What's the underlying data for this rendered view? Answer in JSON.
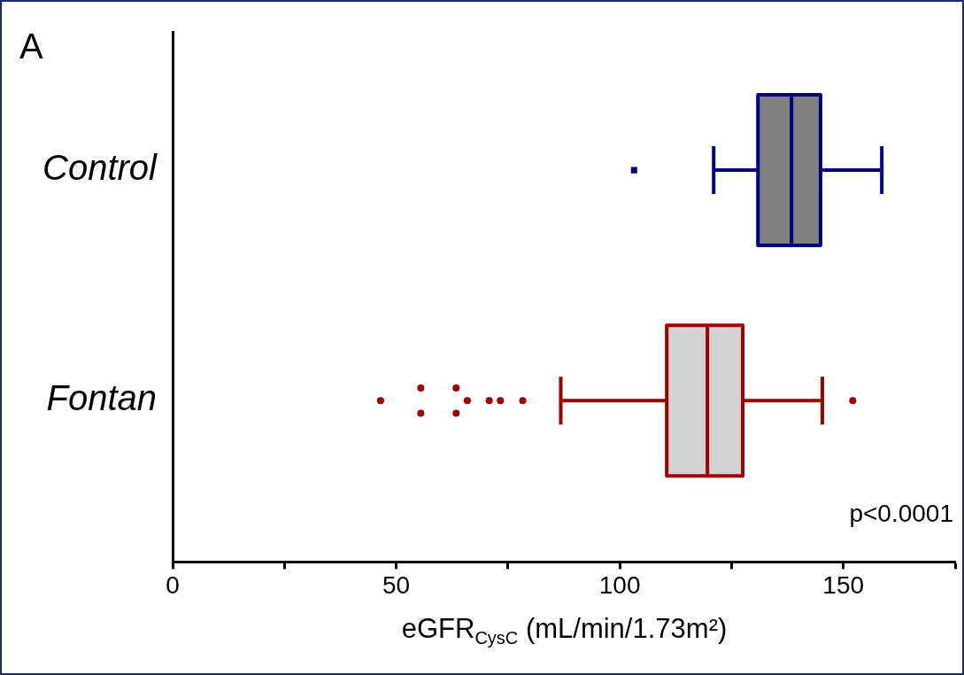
{
  "chart_data": {
    "type": "box",
    "orientation": "horizontal",
    "categories": [
      "Control",
      "Fontan"
    ],
    "xlabel": "eGFR$_{CysC}$ (mL/min/1.73m²)",
    "xlim": [
      0,
      175
    ],
    "xticks": [
      0,
      {
        "value": 25,
        "label": null
      },
      50,
      {
        "value": 75,
        "label": null
      },
      100,
      {
        "value": 125,
        "label": null
      },
      150,
      {
        "value": 175,
        "label": null
      }
    ],
    "series": [
      {
        "color": "#000080",
        "colors": [
          "#808080",
          null
        ],
        "marker": "square",
        "boxes": [
          {
            "low": 121,
            "q1": 130.9,
            "median": 138.4,
            "q3": 144.9,
            "high": 158.6,
            "outliers": [
              103.2
            ]
          },
          null
        ]
      },
      {
        "color": "#a00000",
        "colors": [
          null,
          "#d3d3d3"
        ],
        "marker": "circle",
        "boxes": [
          null,
          {
            "low": 86.8,
            "q1": 110.5,
            "median": 119.6,
            "q3": 127.5,
            "high": 145.3,
            "outliers": [
              46.5,
              55.5,
              55.5,
              63.4,
              63.4,
              65.9,
              70.8,
              73.3,
              78.3,
              152.1
            ]
          }
        ]
      }
    ],
    "annotations": [
      "A",
      "p<0.0001"
    ],
    "grid": false,
    "legend": false
  }
}
